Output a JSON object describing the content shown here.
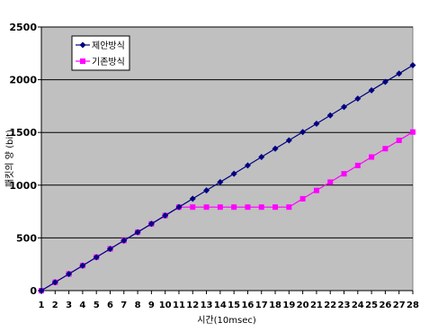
{
  "chart_data": {
    "type": "line",
    "title": "",
    "xlabel": "시간(10msec)",
    "ylabel": "패킷의 양 (bit)",
    "x": [
      1,
      2,
      3,
      4,
      5,
      6,
      7,
      8,
      9,
      10,
      11,
      12,
      13,
      14,
      15,
      16,
      17,
      18,
      19,
      20,
      21,
      22,
      23,
      24,
      25,
      26,
      27,
      28
    ],
    "x_tick_labels": [
      "1",
      "2",
      "3",
      "4",
      "5",
      "6",
      "7",
      "8",
      "9",
      "10",
      "11",
      "12",
      "13",
      "14",
      "15",
      "16",
      "17",
      "18",
      "19",
      "20",
      "21",
      "22",
      "23",
      "24",
      "25",
      "26",
      "27",
      "28"
    ],
    "ylim": [
      0,
      2500
    ],
    "y_ticks": [
      0,
      500,
      1000,
      1500,
      2000,
      2500
    ],
    "y_tick_labels": [
      "0",
      "500",
      "1000",
      "1500",
      "2000",
      "2500"
    ],
    "grid": "horizontal",
    "legend_position": "top-left",
    "series": [
      {
        "name": "제안방식",
        "color": "#000080",
        "marker": "diamond",
        "values": [
          0,
          79,
          158,
          237,
          317,
          396,
          475,
          554,
          633,
          712,
          792,
          871,
          950,
          1029,
          1108,
          1187,
          1267,
          1346,
          1425,
          1504,
          1583,
          1662,
          1742,
          1821,
          1900,
          1979,
          2058,
          2137
        ]
      },
      {
        "name": "기존방식",
        "color": "#ff00ff",
        "marker": "square",
        "values": [
          0,
          79,
          158,
          237,
          317,
          396,
          475,
          554,
          633,
          712,
          792,
          792,
          792,
          792,
          792,
          792,
          792,
          792,
          792,
          871,
          950,
          1029,
          1108,
          1187,
          1267,
          1346,
          1425,
          1504
        ]
      }
    ]
  }
}
